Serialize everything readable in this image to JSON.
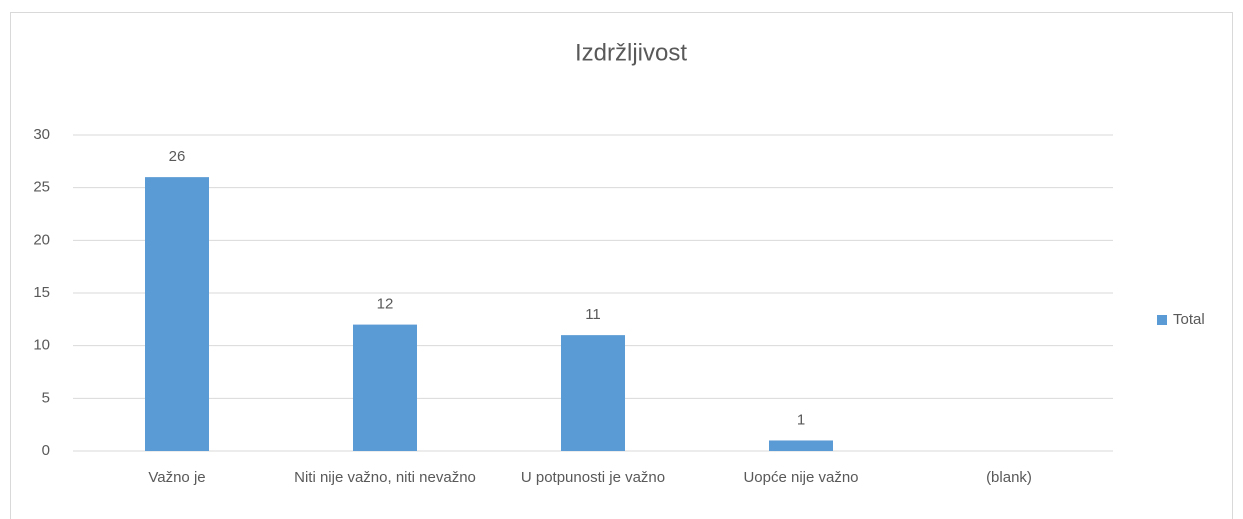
{
  "chart_data": {
    "type": "bar",
    "title": "Izdržljivost",
    "categories": [
      "Važno je",
      "Niti nije važno, niti nevažno",
      "U potpunosti je važno",
      "Uopće nije važno",
      "(blank)"
    ],
    "series": [
      {
        "name": "Total",
        "color": "#5b9bd5",
        "values": [
          26,
          12,
          11,
          1,
          null
        ]
      }
    ],
    "ylim": [
      0,
      30
    ],
    "yticks": [
      0,
      5,
      10,
      15,
      20,
      25,
      30
    ],
    "grid": true,
    "legend": "right"
  }
}
